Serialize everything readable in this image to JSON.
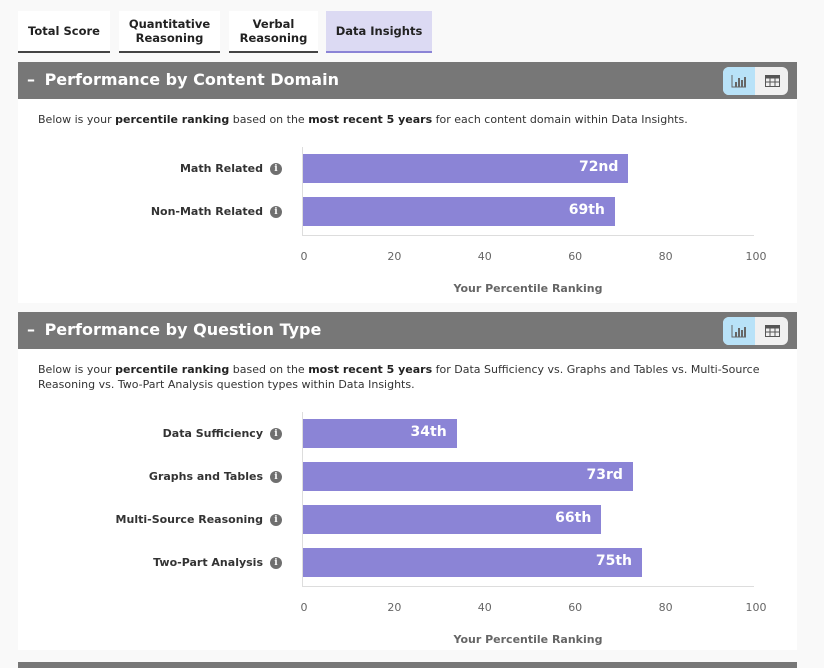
{
  "tabs": [
    {
      "label": "Total Score",
      "active": false
    },
    {
      "label": "Quantitative\nReasoning",
      "active": false
    },
    {
      "label": "Verbal\nReasoning",
      "active": false
    },
    {
      "label": "Data Insights",
      "active": true
    }
  ],
  "colors": {
    "bar": "#8b84d6",
    "header": "#777777",
    "active_tab": "#dcdaf3",
    "toggle_active": "#b8e2f8"
  },
  "sections": [
    {
      "collapse_icon": "minus-icon",
      "title": "Performance by Content Domain",
      "view_toggle": {
        "chart_icon": "bar-chart-icon",
        "table_icon": "table-icon",
        "selected": "chart"
      },
      "description": {
        "p1": "Below is your ",
        "b1": "percentile ranking",
        "p2": " based on the ",
        "b2": "most recent 5 years",
        "p3": " for each content domain within Data Insights."
      }
    },
    {
      "collapse_icon": "minus-icon",
      "title": "Performance by Question Type",
      "view_toggle": {
        "chart_icon": "bar-chart-icon",
        "table_icon": "table-icon",
        "selected": "chart"
      },
      "description": {
        "p1": "Below is your ",
        "b1": "percentile ranking",
        "p2": " based on the ",
        "b2": "most recent 5 years",
        "p3": " for Data Sufficiency vs. Graphs and Tables vs. Multi-Source Reasoning vs. Two-Part Analysis question types within Data Insights."
      }
    }
  ],
  "chart_data": [
    {
      "type": "bar",
      "orientation": "horizontal",
      "categories": [
        "Math Related",
        "Non-Math Related"
      ],
      "values": [
        72,
        69
      ],
      "data_labels": [
        "72nd",
        "69th"
      ],
      "xlabel": "Your Percentile Ranking",
      "xlim": [
        0,
        100
      ],
      "xticks": [
        "0",
        "20",
        "40",
        "60",
        "80",
        "100"
      ],
      "grid": false
    },
    {
      "type": "bar",
      "orientation": "horizontal",
      "categories": [
        "Data Sufficiency",
        "Graphs and Tables",
        "Multi-Source Reasoning",
        "Two-Part Analysis"
      ],
      "values": [
        34,
        73,
        66,
        75
      ],
      "data_labels": [
        "34th",
        "73rd",
        "66th",
        "75th"
      ],
      "xlabel": "Your Percentile Ranking",
      "xlim": [
        0,
        100
      ],
      "xticks": [
        "0",
        "20",
        "40",
        "60",
        "80",
        "100"
      ],
      "grid": false
    }
  ]
}
